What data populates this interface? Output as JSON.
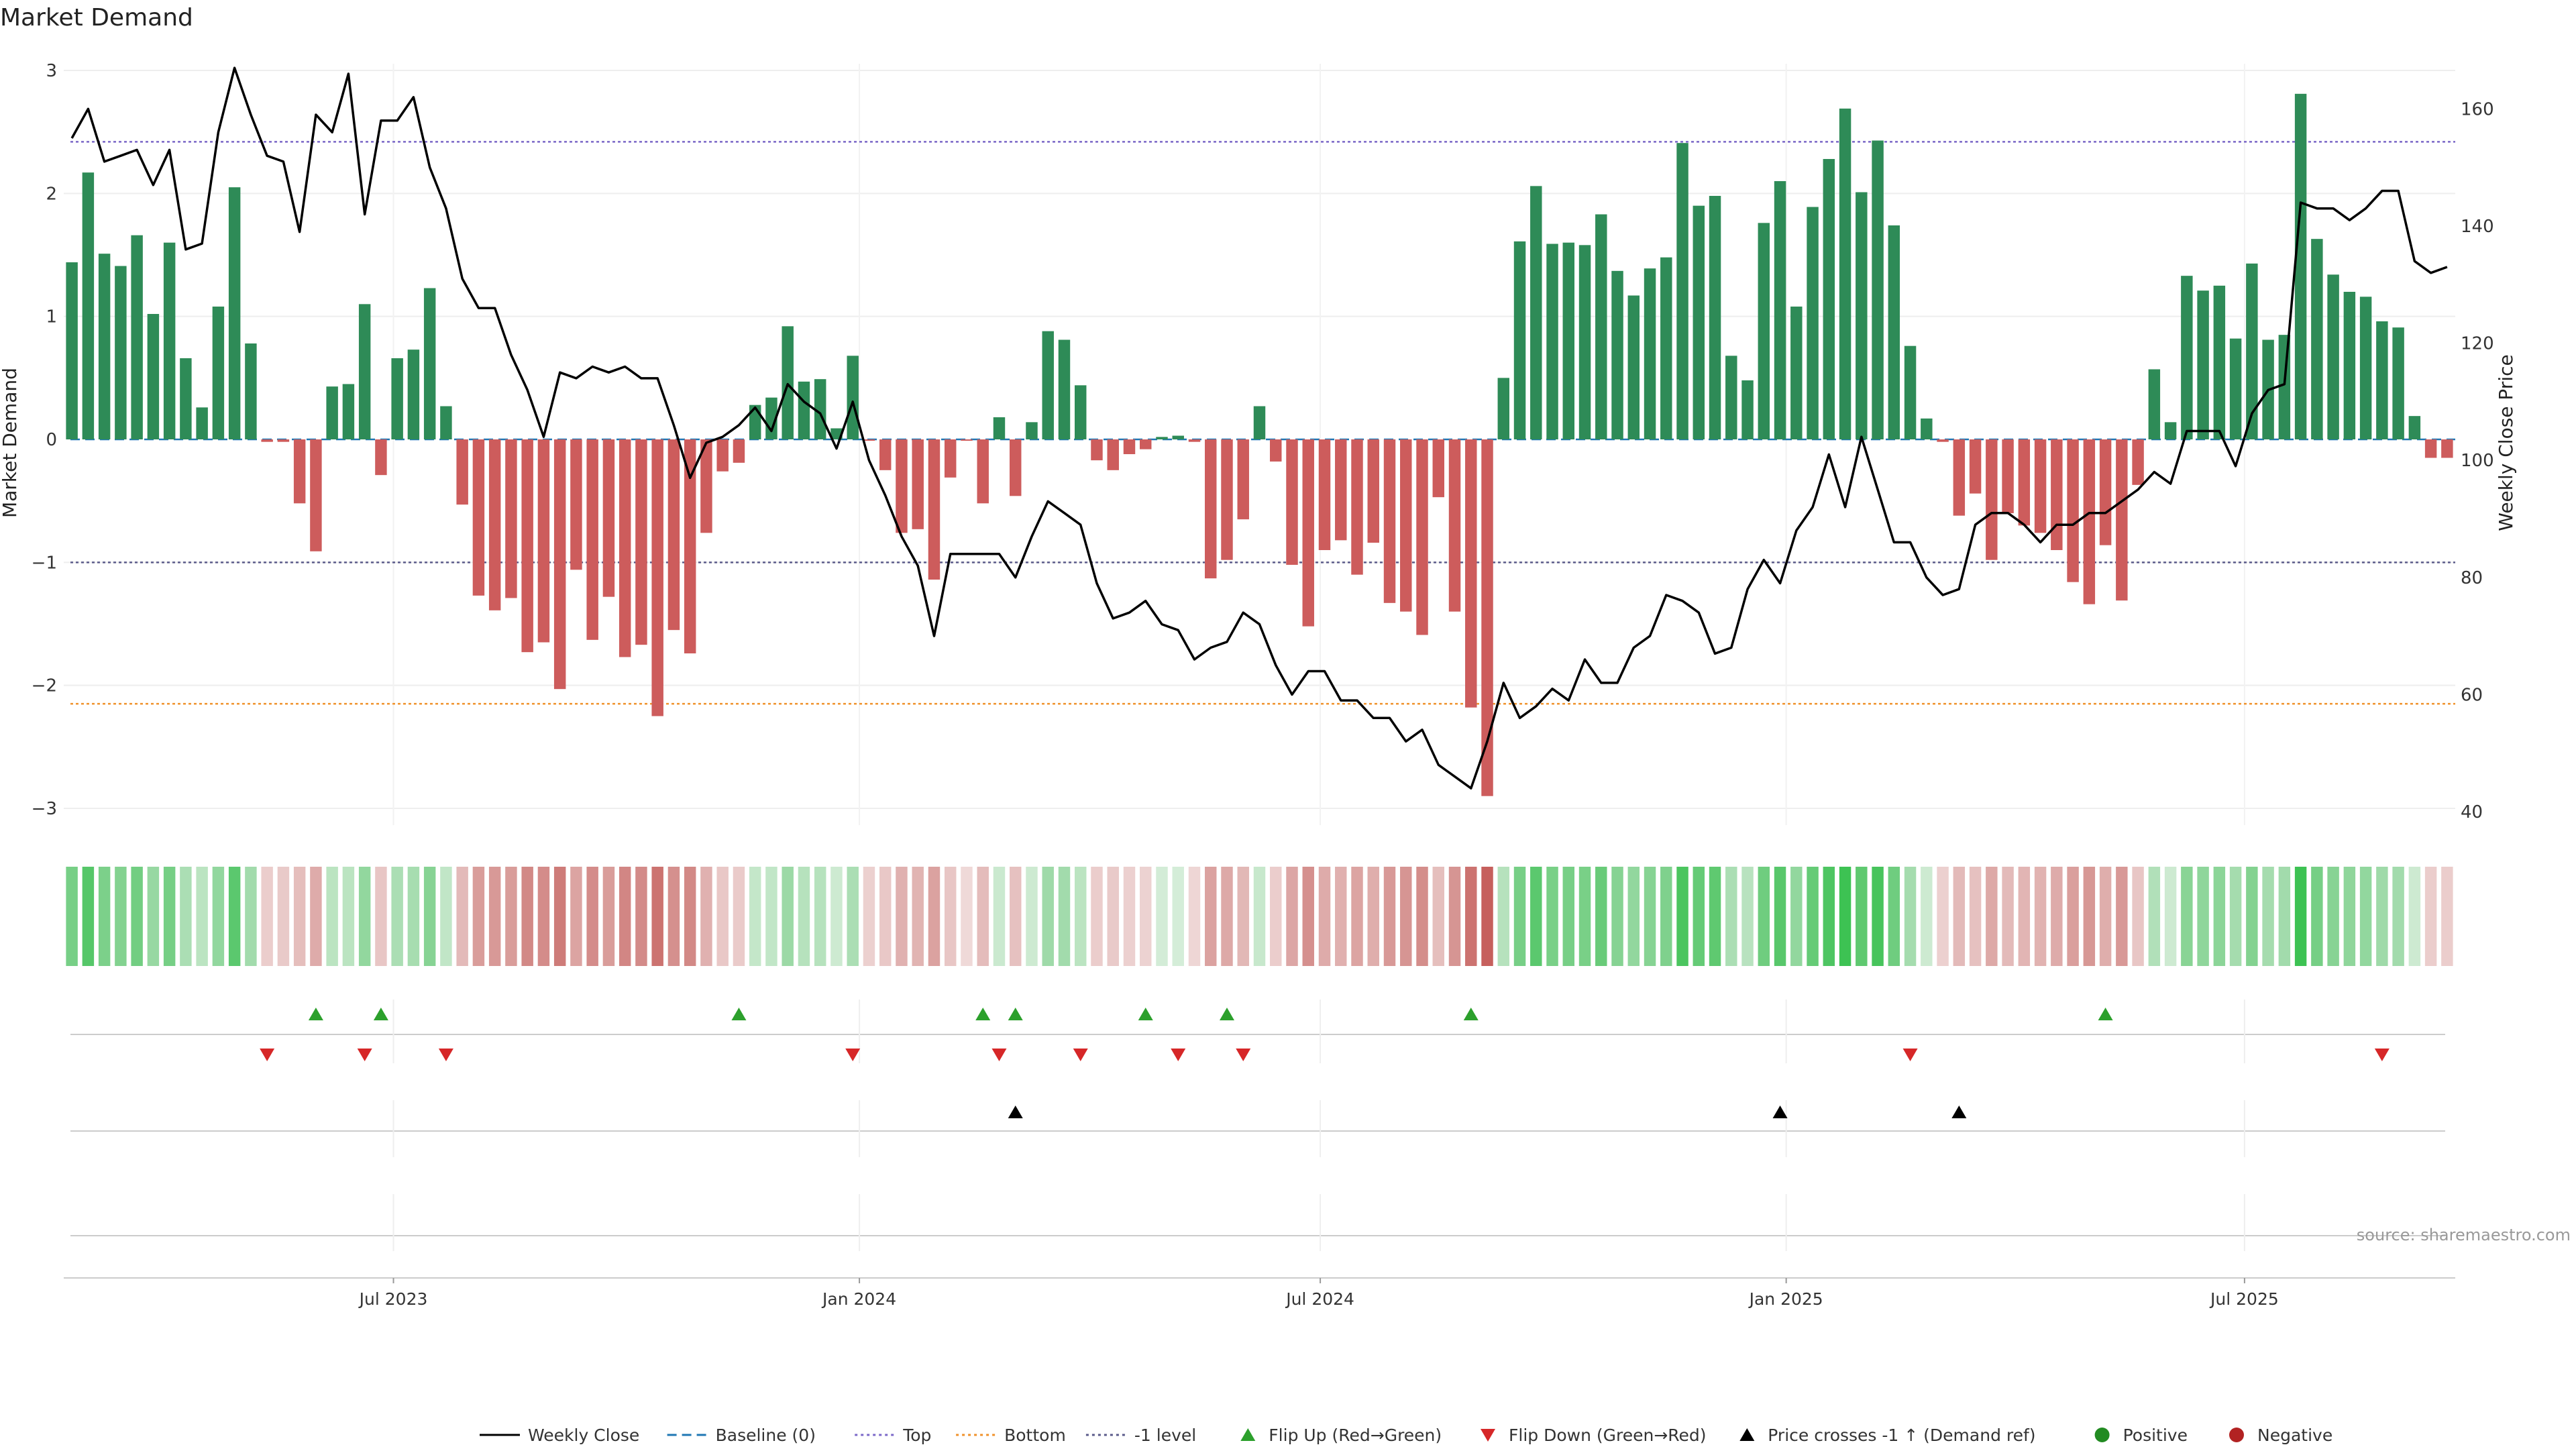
{
  "chart_data": {
    "type": "bar",
    "title": "Market Demand",
    "ylabel": "Market Demand",
    "y2label": "Weekly Close Price",
    "ylim": [
      -3.0,
      3.0
    ],
    "y2lim": [
      40,
      170
    ],
    "yticks": [
      3,
      2,
      1,
      0,
      -1,
      -2,
      -3
    ],
    "yticklabels": [
      "3",
      "2",
      "1",
      "0",
      "−1",
      "−2",
      "−3"
    ],
    "y2ticks": [
      160,
      140,
      120,
      100,
      80,
      60,
      40
    ],
    "reference_lines": [
      {
        "name": "Top",
        "value": 2.42,
        "color": "#7b68c8"
      },
      {
        "name": "Bottom",
        "value": -2.15,
        "color": "#f0922b"
      },
      {
        "name": "-1 level",
        "value": -1.0,
        "color": "#5a5a8a"
      },
      {
        "name": "Baseline (0)",
        "value": 0.0,
        "color": "#1f77b4"
      }
    ],
    "x_date_range": [
      "2023-02-24",
      "2025-09-19"
    ],
    "x_ticks": [
      {
        "label": "Jul 2023",
        "date": "2023-07-01"
      },
      {
        "label": "Jan 2024",
        "date": "2024-01-01"
      },
      {
        "label": "Jul 2024",
        "date": "2024-07-01"
      },
      {
        "label": "Jan 2025",
        "date": "2025-01-01"
      },
      {
        "label": "Jul 2025",
        "date": "2025-07-01"
      }
    ],
    "demand": [
      1.44,
      2.17,
      1.51,
      1.41,
      1.66,
      1.02,
      1.6,
      0.66,
      0.26,
      1.08,
      2.05,
      0.78,
      -0.02,
      -0.02,
      -0.52,
      -0.91,
      0.43,
      0.45,
      1.1,
      -0.29,
      0.66,
      0.73,
      1.23,
      0.27,
      -0.53,
      -1.27,
      -1.39,
      -1.29,
      -1.73,
      -1.65,
      -2.03,
      -1.06,
      -1.63,
      -1.28,
      -1.77,
      -1.67,
      -2.25,
      -1.55,
      -1.74,
      -0.76,
      -0.26,
      -0.19,
      0.28,
      0.34,
      0.92,
      0.47,
      0.49,
      0.09,
      0.68,
      -0.01,
      -0.25,
      -0.76,
      -0.73,
      -1.14,
      -0.31,
      -0.01,
      -0.52,
      0.18,
      -0.46,
      0.14,
      0.88,
      0.81,
      0.44,
      -0.17,
      -0.25,
      -0.12,
      -0.08,
      0.02,
      0.03,
      -0.02,
      -1.13,
      -0.98,
      -0.65,
      0.27,
      -0.18,
      -1.02,
      -1.52,
      -0.9,
      -0.82,
      -1.1,
      -0.84,
      -1.33,
      -1.4,
      -1.59,
      -0.47,
      -1.4,
      -2.18,
      -2.9,
      0.5,
      1.61,
      2.06,
      1.59,
      1.6,
      1.58,
      1.83,
      1.37,
      1.17,
      1.39,
      1.48,
      2.41,
      1.9,
      1.98,
      0.68,
      0.48,
      1.76,
      2.1,
      1.08,
      1.89,
      2.28,
      2.69,
      2.01,
      2.43,
      1.74,
      0.76,
      0.17,
      -0.02,
      -0.62,
      -0.44,
      -0.98,
      -0.6,
      -0.7,
      -0.76,
      -0.9,
      -1.16,
      -1.34,
      -0.86,
      -1.31,
      -0.37,
      0.57,
      0.14,
      1.33,
      1.21,
      1.25,
      0.82,
      1.43,
      0.81,
      0.85,
      2.81,
      1.63,
      1.34,
      1.2,
      1.16,
      0.96,
      0.91,
      0.19,
      -0.15,
      -0.15
    ],
    "weekly_close": [
      155,
      160,
      151,
      152,
      153,
      147,
      153,
      136,
      137,
      156,
      167,
      159,
      152,
      151,
      139,
      159,
      156,
      166,
      142,
      158,
      158,
      162,
      150,
      143,
      131,
      126,
      126,
      118,
      112,
      104,
      115,
      114,
      116,
      115,
      116,
      114,
      114,
      106,
      97,
      103,
      104,
      106,
      109,
      105,
      113,
      110,
      108,
      102,
      110,
      100,
      94,
      87,
      82,
      70,
      84,
      84,
      84,
      84,
      80,
      87,
      93,
      91,
      89,
      79,
      73,
      74,
      76,
      72,
      71,
      66,
      68,
      69,
      74,
      72,
      65,
      60,
      64,
      64,
      59,
      59,
      56,
      56,
      52,
      54,
      48,
      46,
      44,
      52,
      62,
      56,
      58,
      61,
      59,
      66,
      62,
      62,
      68,
      70,
      77,
      76,
      74,
      67,
      68,
      78,
      83,
      79,
      88,
      92,
      101,
      92,
      104,
      95,
      86,
      86,
      80,
      77,
      78,
      89,
      91,
      91,
      89,
      86,
      89,
      89,
      91,
      91,
      93,
      95,
      98,
      96,
      105,
      105,
      105,
      99,
      108,
      112,
      113,
      144,
      143,
      143,
      141,
      143,
      146,
      146,
      134,
      132,
      133
    ],
    "strip_intensity": [
      0.65,
      0.85,
      0.62,
      0.58,
      0.68,
      0.45,
      0.66,
      0.32,
      0.22,
      0.48,
      0.82,
      0.38,
      0.12,
      0.15,
      0.25,
      0.4,
      0.22,
      0.22,
      0.48,
      0.18,
      0.32,
      0.35,
      0.55,
      0.18,
      0.28,
      0.52,
      0.55,
      0.52,
      0.68,
      0.65,
      0.78,
      0.46,
      0.65,
      0.52,
      0.7,
      0.66,
      0.85,
      0.62,
      0.68,
      0.35,
      0.16,
      0.14,
      0.16,
      0.18,
      0.42,
      0.25,
      0.25,
      0.1,
      0.32,
      0.1,
      0.16,
      0.35,
      0.33,
      0.48,
      0.18,
      0.02,
      0.26,
      0.12,
      0.22,
      0.1,
      0.4,
      0.38,
      0.22,
      0.12,
      0.15,
      0.1,
      0.08,
      0.06,
      0.05,
      0.05,
      0.48,
      0.42,
      0.3,
      0.14,
      0.12,
      0.44,
      0.62,
      0.4,
      0.36,
      0.46,
      0.38,
      0.55,
      0.58,
      0.64,
      0.24,
      0.58,
      0.85,
      1.0,
      0.25,
      0.65,
      0.82,
      0.64,
      0.65,
      0.64,
      0.74,
      0.56,
      0.48,
      0.56,
      0.6,
      0.92,
      0.76,
      0.8,
      0.32,
      0.24,
      0.7,
      0.84,
      0.48,
      0.76,
      0.9,
      1.0,
      0.8,
      0.94,
      0.7,
      0.36,
      0.1,
      0.1,
      0.28,
      0.22,
      0.42,
      0.28,
      0.32,
      0.34,
      0.4,
      0.5,
      0.56,
      0.38,
      0.55,
      0.18,
      0.28,
      0.1,
      0.54,
      0.5,
      0.52,
      0.36,
      0.58,
      0.36,
      0.38,
      1.0,
      0.66,
      0.55,
      0.5,
      0.48,
      0.4,
      0.38,
      0.1,
      0.12,
      0.12
    ],
    "flip_up_weeks": [
      15,
      19,
      41,
      56,
      58,
      66,
      71,
      86,
      125
    ],
    "flip_down_weeks": [
      12,
      18,
      23,
      48,
      57,
      62,
      68,
      72,
      113,
      142
    ],
    "price_cross_weeks": [
      58,
      105,
      116
    ],
    "legend": [
      "Weekly Close",
      "Baseline (0)",
      "Top",
      "Bottom",
      "-1 level",
      "Flip Up (Red→Green)",
      "Flip Down (Green→Red)",
      "Price crosses -1 ↑ (Demand ref)",
      "Positive",
      "Negative"
    ],
    "source": "source: sharemaestro.com",
    "colors": {
      "positive": "#2e8b57",
      "negative": "#cd5c5c",
      "price": "#000000",
      "flip_up": "#2ca02c",
      "flip_down": "#d62728",
      "cross": "#000000",
      "legend_positive": "#228b22",
      "legend_negative": "#b22222"
    }
  }
}
